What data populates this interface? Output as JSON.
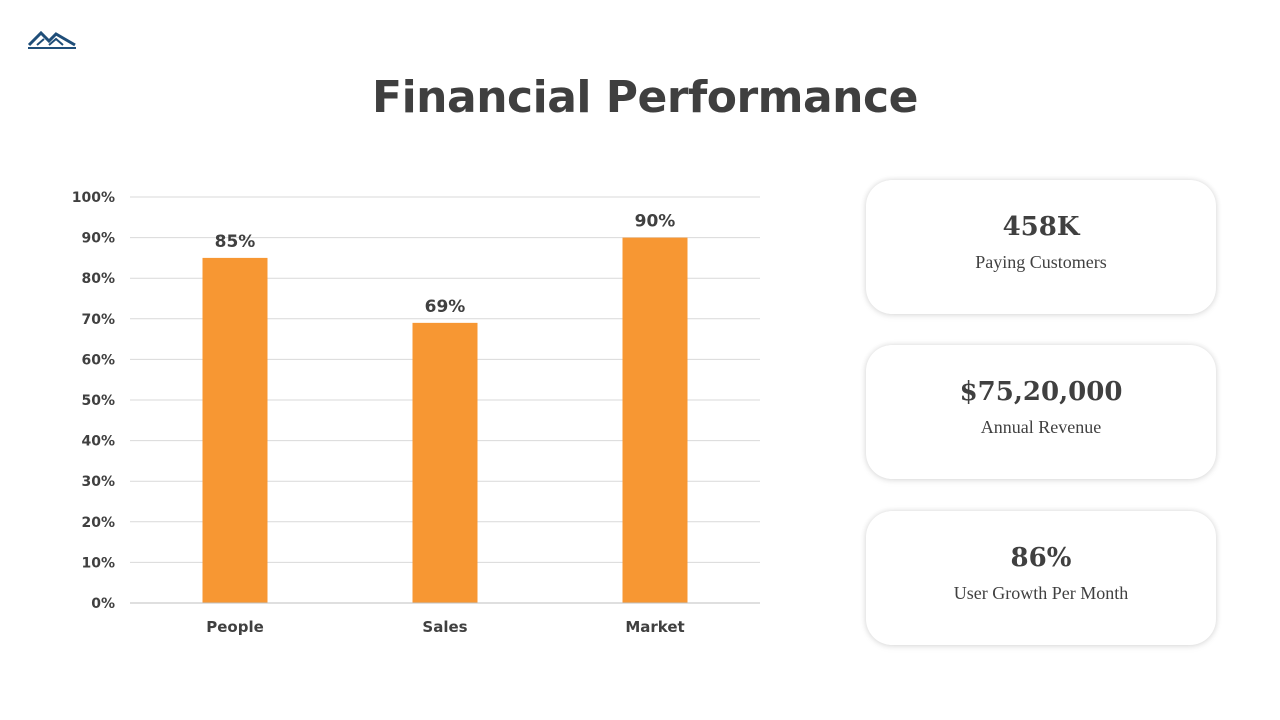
{
  "title": "Financial Performance",
  "colors": {
    "bar": "#F79733",
    "grid": "#d9d9d9",
    "text": "#404040",
    "logo": "#1f4e79"
  },
  "logo_icon": "mountain-logo-icon",
  "chart_data": {
    "type": "bar",
    "categories": [
      "People",
      "Sales",
      "Market"
    ],
    "values": [
      85,
      69,
      90
    ],
    "data_labels": [
      "85%",
      "69%",
      "90%"
    ],
    "ylim": [
      0,
      100
    ],
    "yticks": [
      "0%",
      "10%",
      "20%",
      "30%",
      "40%",
      "50%",
      "60%",
      "70%",
      "80%",
      "90%",
      "100%"
    ],
    "grid": true,
    "legend": "none"
  },
  "stats": [
    {
      "value": "458K",
      "label": "Paying Customers"
    },
    {
      "value": "$75,20,000",
      "label": "Annual Revenue"
    },
    {
      "value": "86%",
      "label": "User Growth Per Month"
    }
  ]
}
